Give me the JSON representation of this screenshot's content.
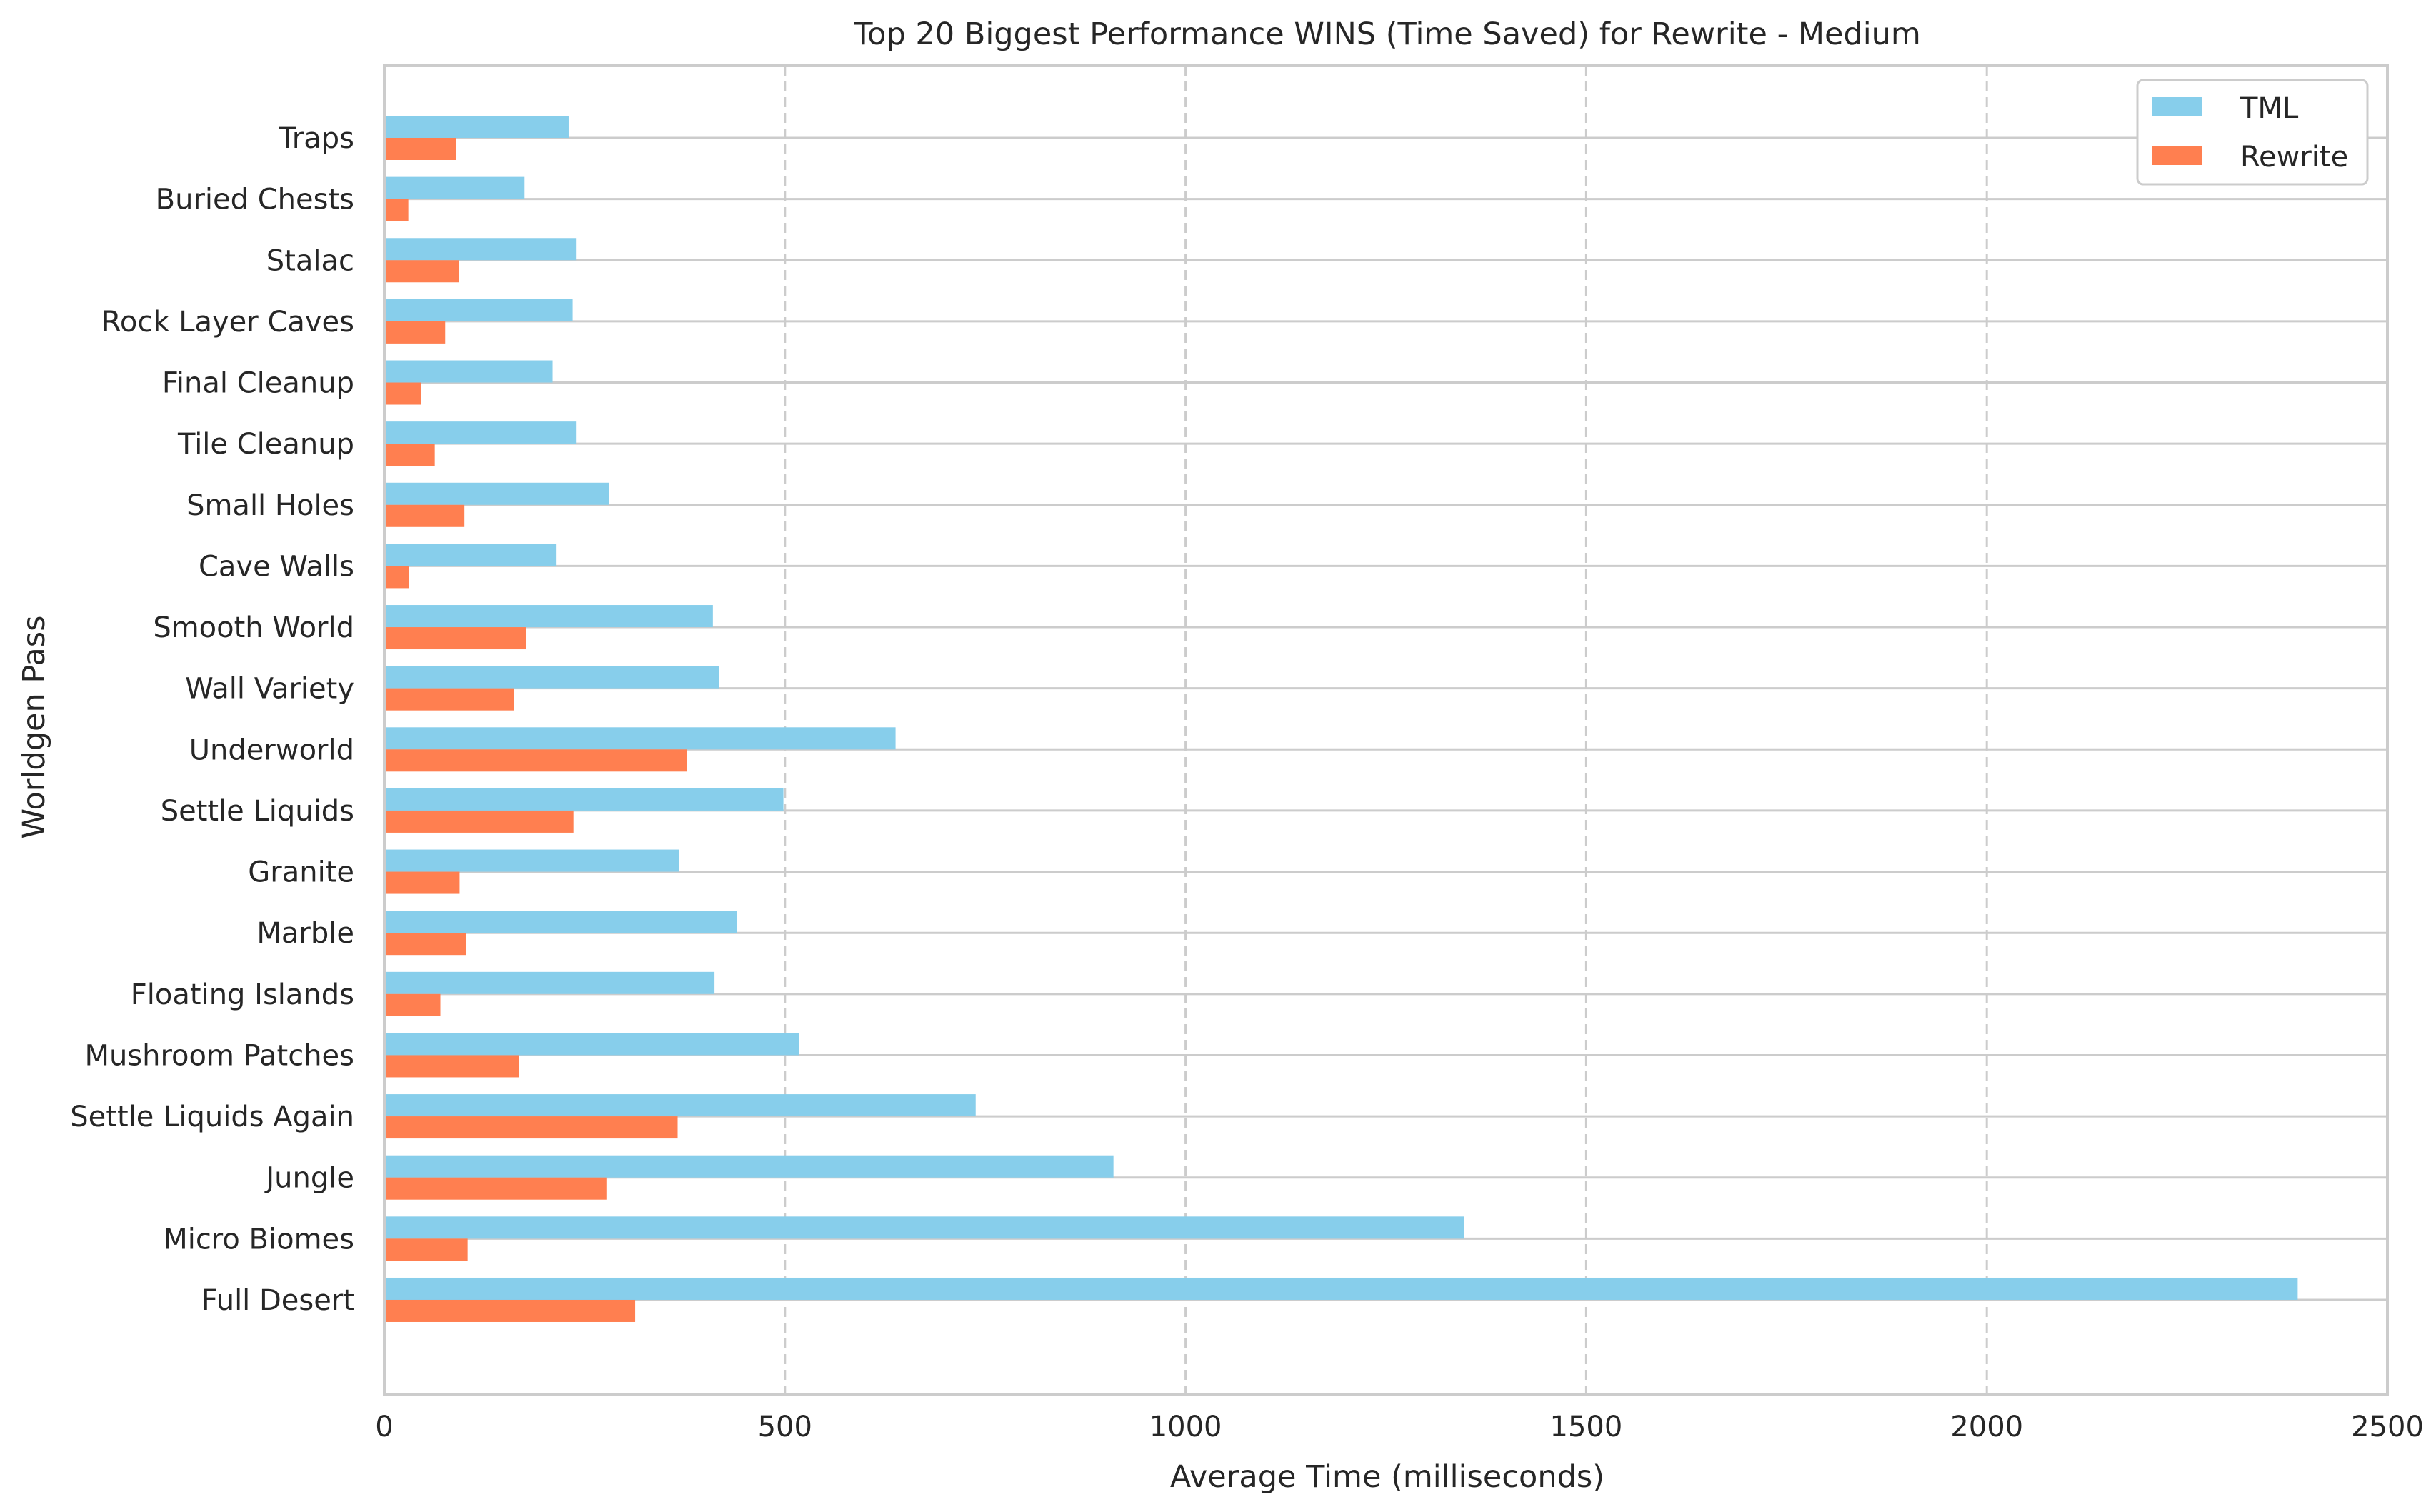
{
  "chart_data": {
    "type": "bar",
    "orientation": "horizontal",
    "title": "Top 20 Biggest Performance WINS (Time Saved) for Rewrite - Medium",
    "xlabel": "Average Time (milliseconds)",
    "ylabel": "Worldgen Pass",
    "xlim": [
      0,
      2500
    ],
    "xticks": [
      "0",
      "500",
      "1000",
      "1500",
      "2000",
      "2500"
    ],
    "grid": "x dashed",
    "legend_position": "top-right",
    "categories": [
      "Traps",
      "Buried Chests",
      "Stalac",
      "Rock Layer Caves",
      "Final Cleanup",
      "Tile Cleanup",
      "Small Holes",
      "Cave Walls",
      "Smooth World",
      "Wall Variety",
      "Underworld",
      "Settle Liquids",
      "Granite",
      "Marble",
      "Floating Islands",
      "Mushroom Patches",
      "Settle Liquids Again",
      "Jungle",
      "Micro Biomes",
      "Full Desert"
    ],
    "series": [
      {
        "name": "TML",
        "color": "#87ceeb",
        "values": [
          230,
          175,
          240,
          235,
          210,
          240,
          280,
          215,
          410,
          418,
          638,
          498,
          368,
          440,
          412,
          518,
          738,
          910,
          1348,
          2388
        ]
      },
      {
        "name": "Rewrite",
        "color": "#ff7f50",
        "values": [
          90,
          30,
          93,
          76,
          46,
          63,
          100,
          31,
          177,
          162,
          378,
          236,
          94,
          102,
          70,
          168,
          366,
          278,
          104,
          313
        ]
      }
    ]
  }
}
